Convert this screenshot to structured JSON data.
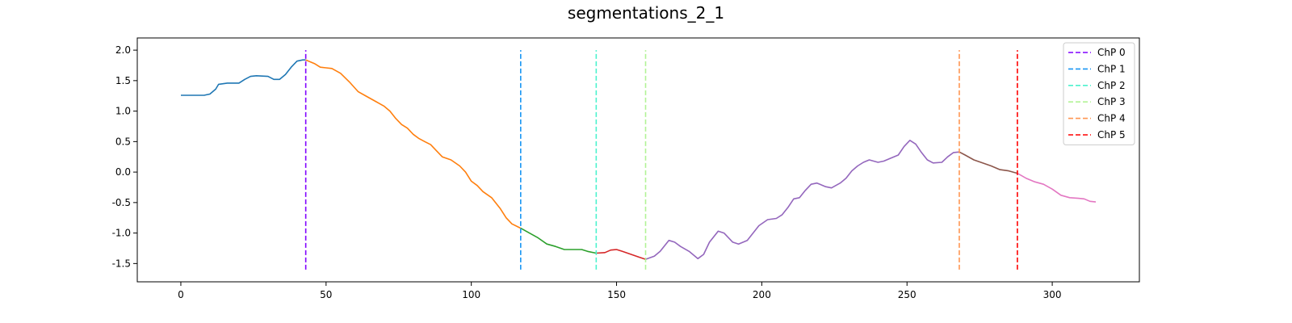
{
  "chart_data": {
    "type": "line",
    "title": "segmentations_2_1",
    "xlabel": "",
    "ylabel": "",
    "xlim": [
      -15,
      330
    ],
    "ylim": [
      -1.8,
      2.2
    ],
    "x_ticks": [
      0,
      50,
      100,
      150,
      200,
      250,
      300
    ],
    "y_ticks": [
      -1.5,
      -1.0,
      -0.5,
      0.0,
      0.5,
      1.0,
      1.5,
      2.0
    ],
    "grid": false,
    "legend_position": "top-right",
    "segments": [
      {
        "color": "#1f77b4",
        "points": [
          [
            0,
            1.26
          ],
          [
            4,
            1.26
          ],
          [
            8,
            1.26
          ],
          [
            10,
            1.28
          ],
          [
            12,
            1.36
          ],
          [
            13,
            1.44
          ],
          [
            16,
            1.46
          ],
          [
            20,
            1.46
          ],
          [
            22,
            1.52
          ],
          [
            24,
            1.57
          ],
          [
            26,
            1.58
          ],
          [
            30,
            1.57
          ],
          [
            32,
            1.52
          ],
          [
            34,
            1.52
          ],
          [
            36,
            1.6
          ],
          [
            38,
            1.72
          ],
          [
            40,
            1.82
          ],
          [
            42,
            1.84
          ],
          [
            43,
            1.84
          ]
        ]
      },
      {
        "color": "#ff7f0e",
        "points": [
          [
            43,
            1.84
          ],
          [
            46,
            1.78
          ],
          [
            48,
            1.72
          ],
          [
            50,
            1.71
          ],
          [
            52,
            1.7
          ],
          [
            55,
            1.62
          ],
          [
            58,
            1.48
          ],
          [
            61,
            1.32
          ],
          [
            64,
            1.24
          ],
          [
            67,
            1.16
          ],
          [
            70,
            1.08
          ],
          [
            72,
            1.0
          ],
          [
            74,
            0.88
          ],
          [
            76,
            0.78
          ],
          [
            78,
            0.72
          ],
          [
            80,
            0.62
          ],
          [
            82,
            0.55
          ],
          [
            84,
            0.5
          ],
          [
            86,
            0.45
          ],
          [
            88,
            0.35
          ],
          [
            90,
            0.25
          ],
          [
            93,
            0.2
          ],
          [
            96,
            0.1
          ],
          [
            98,
            0.0
          ],
          [
            100,
            -0.15
          ],
          [
            102,
            -0.22
          ],
          [
            104,
            -0.32
          ],
          [
            107,
            -0.42
          ],
          [
            110,
            -0.6
          ],
          [
            112,
            -0.75
          ],
          [
            114,
            -0.85
          ],
          [
            117,
            -0.92
          ]
        ]
      },
      {
        "color": "#2ca02c",
        "points": [
          [
            117,
            -0.92
          ],
          [
            120,
            -1.0
          ],
          [
            123,
            -1.08
          ],
          [
            126,
            -1.18
          ],
          [
            129,
            -1.22
          ],
          [
            132,
            -1.27
          ],
          [
            135,
            -1.27
          ],
          [
            138,
            -1.27
          ],
          [
            140,
            -1.3
          ],
          [
            143,
            -1.33
          ]
        ]
      },
      {
        "color": "#d62728",
        "points": [
          [
            143,
            -1.33
          ],
          [
            146,
            -1.32
          ],
          [
            148,
            -1.28
          ],
          [
            150,
            -1.27
          ],
          [
            152,
            -1.3
          ],
          [
            155,
            -1.35
          ],
          [
            158,
            -1.4
          ],
          [
            160,
            -1.43
          ]
        ]
      },
      {
        "color": "#9467bd",
        "points": [
          [
            160,
            -1.43
          ],
          [
            163,
            -1.38
          ],
          [
            165,
            -1.3
          ],
          [
            168,
            -1.12
          ],
          [
            170,
            -1.15
          ],
          [
            172,
            -1.22
          ],
          [
            175,
            -1.3
          ],
          [
            178,
            -1.42
          ],
          [
            180,
            -1.35
          ],
          [
            182,
            -1.15
          ],
          [
            185,
            -0.97
          ],
          [
            187,
            -1.0
          ],
          [
            190,
            -1.15
          ],
          [
            192,
            -1.18
          ],
          [
            195,
            -1.12
          ],
          [
            197,
            -1.0
          ],
          [
            199,
            -0.88
          ],
          [
            202,
            -0.78
          ],
          [
            205,
            -0.76
          ],
          [
            207,
            -0.7
          ],
          [
            209,
            -0.58
          ],
          [
            211,
            -0.44
          ],
          [
            213,
            -0.42
          ],
          [
            215,
            -0.3
          ],
          [
            217,
            -0.2
          ],
          [
            219,
            -0.18
          ],
          [
            222,
            -0.24
          ],
          [
            224,
            -0.26
          ],
          [
            227,
            -0.18
          ],
          [
            229,
            -0.1
          ],
          [
            231,
            0.02
          ],
          [
            233,
            0.1
          ],
          [
            235,
            0.16
          ],
          [
            237,
            0.2
          ],
          [
            240,
            0.16
          ],
          [
            242,
            0.18
          ],
          [
            244,
            0.22
          ],
          [
            247,
            0.28
          ],
          [
            249,
            0.42
          ],
          [
            251,
            0.52
          ],
          [
            253,
            0.46
          ],
          [
            255,
            0.32
          ],
          [
            257,
            0.2
          ],
          [
            259,
            0.15
          ],
          [
            262,
            0.16
          ],
          [
            264,
            0.25
          ],
          [
            266,
            0.32
          ],
          [
            268,
            0.33
          ]
        ]
      },
      {
        "color": "#8c564b",
        "points": [
          [
            268,
            0.33
          ],
          [
            270,
            0.28
          ],
          [
            273,
            0.2
          ],
          [
            276,
            0.15
          ],
          [
            279,
            0.1
          ],
          [
            282,
            0.04
          ],
          [
            285,
            0.02
          ],
          [
            288,
            -0.02
          ]
        ]
      },
      {
        "color": "#e377c2",
        "points": [
          [
            288,
            -0.02
          ],
          [
            291,
            -0.1
          ],
          [
            294,
            -0.16
          ],
          [
            297,
            -0.2
          ],
          [
            300,
            -0.28
          ],
          [
            303,
            -0.38
          ],
          [
            306,
            -0.42
          ],
          [
            309,
            -0.43
          ],
          [
            311,
            -0.44
          ],
          [
            313,
            -0.48
          ],
          [
            315,
            -0.49
          ]
        ]
      }
    ],
    "changepoints": [
      {
        "name": "ChP 0",
        "x": 43,
        "color": "#8000ff"
      },
      {
        "name": "ChP 1",
        "x": 117,
        "color": "#1996f3"
      },
      {
        "name": "ChP 2",
        "x": 143,
        "color": "#4cf2ce"
      },
      {
        "name": "ChP 3",
        "x": 160,
        "color": "#b2f396"
      },
      {
        "name": "ChP 4",
        "x": 268,
        "color": "#ff9652"
      },
      {
        "name": "ChP 5",
        "x": 288,
        "color": "#ff0000"
      }
    ],
    "changepoint_range": [
      -1.6,
      2.0
    ]
  }
}
